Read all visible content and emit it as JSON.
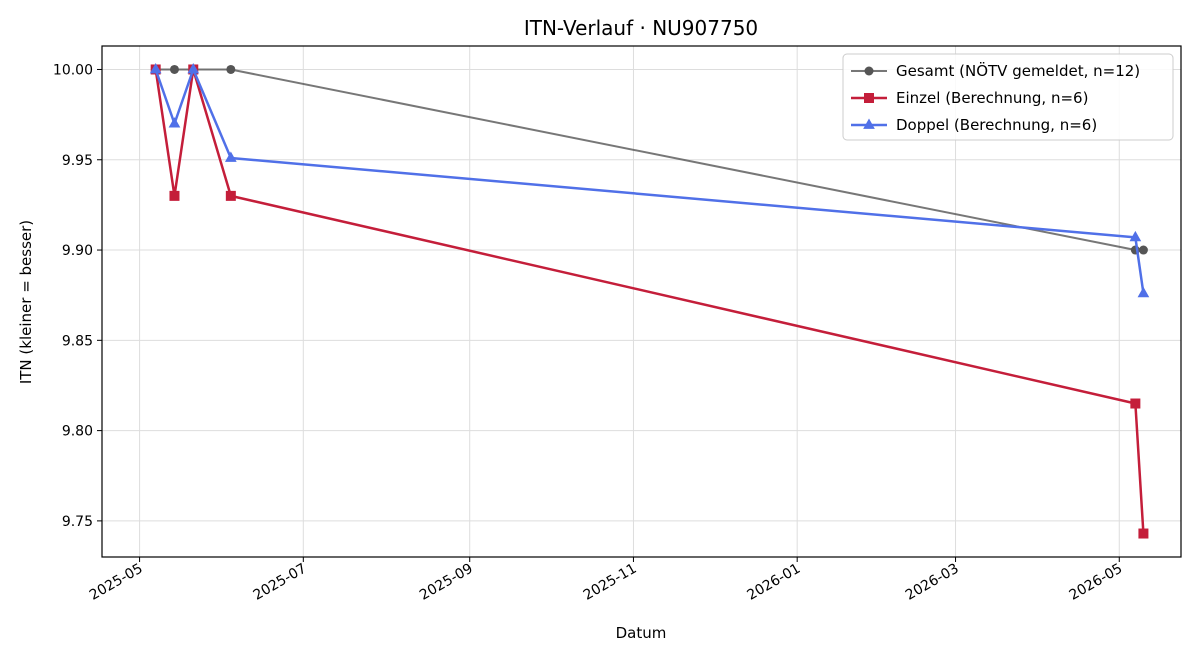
{
  "chart_data": {
    "type": "line",
    "title": "ITN-Verlauf · NU907750",
    "xlabel": "Datum",
    "ylabel": "ITN  (kleiner = besser)",
    "x_ticks": [
      "2025-05",
      "2025-07",
      "2025-09",
      "2025-11",
      "2026-01",
      "2026-03",
      "2026-05"
    ],
    "y_ticks": [
      "9.75",
      "9.80",
      "9.85",
      "9.90",
      "9.95",
      "10.00"
    ],
    "ylim": [
      9.73,
      10.013
    ],
    "xlim": [
      "2025-04-17",
      "2026-05-24"
    ],
    "grid": true,
    "legend_position": "top-right",
    "series": [
      {
        "name": "Gesamt (NÖTV gemeldet, n=12)",
        "color": "#555555",
        "marker": "circle",
        "points": [
          {
            "x": "2025-05-07",
            "y": 10.0
          },
          {
            "x": "2025-05-14",
            "y": 10.0
          },
          {
            "x": "2025-05-21",
            "y": 10.0
          },
          {
            "x": "2025-06-04",
            "y": 10.0
          },
          {
            "x": "2026-05-07",
            "y": 9.9
          },
          {
            "x": "2026-05-10",
            "y": 9.9
          }
        ]
      },
      {
        "name": "Einzel (Berechnung, n=6)",
        "color": "#c41e3a",
        "marker": "square",
        "points": [
          {
            "x": "2025-05-07",
            "y": 10.0
          },
          {
            "x": "2025-05-14",
            "y": 9.93
          },
          {
            "x": "2025-05-21",
            "y": 10.0
          },
          {
            "x": "2025-06-04",
            "y": 9.93
          },
          {
            "x": "2026-05-07",
            "y": 9.815
          },
          {
            "x": "2026-05-10",
            "y": 9.743
          }
        ]
      },
      {
        "name": "Doppel (Berechnung, n=6)",
        "color": "#5070e8",
        "marker": "triangle",
        "points": [
          {
            "x": "2025-05-07",
            "y": 10.0
          },
          {
            "x": "2025-05-14",
            "y": 9.97
          },
          {
            "x": "2025-05-21",
            "y": 10.0
          },
          {
            "x": "2025-06-04",
            "y": 9.951
          },
          {
            "x": "2026-05-07",
            "y": 9.907
          },
          {
            "x": "2026-05-10",
            "y": 9.876
          }
        ]
      }
    ]
  }
}
